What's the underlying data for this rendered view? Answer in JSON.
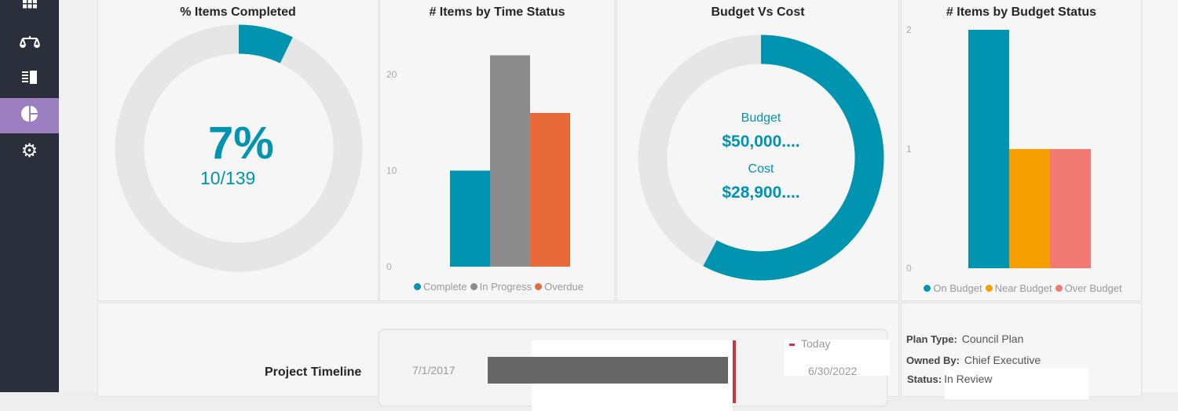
{
  "sidebar": {
    "items": [
      {
        "icon": "grid-icon"
      },
      {
        "icon": "scales-icon"
      },
      {
        "icon": "list-panel-icon"
      },
      {
        "icon": "pie-chart-icon",
        "active": true
      },
      {
        "icon": "gear-icon"
      }
    ]
  },
  "completed": {
    "title": "% Items Completed",
    "percent_label": "7%",
    "count_label": "10/139",
    "fraction": 0.072,
    "color": "#0094b0"
  },
  "time_status": {
    "title": "# Items by Time Status"
  },
  "budget_cost": {
    "title": "Budget Vs Cost",
    "budget_label": "Budget",
    "budget_value": "$50,000....",
    "cost_label": "Cost",
    "cost_value": "$28,900....",
    "fraction": 0.578
  },
  "budget_status": {
    "title": "# Items by Budget Status"
  },
  "timeline": {
    "title": "Project Timeline",
    "start": "7/1/2017",
    "end": "6/30/2022",
    "legend_today": "Today",
    "today_fraction": 0.96
  },
  "info": {
    "plan_type_label": "Plan Type:",
    "plan_type": "Council Plan",
    "owned_by_label": "Owned By:",
    "owned_by": "Chief Executive",
    "status_label": "Status:",
    "status": "In Review"
  },
  "chart_data": [
    {
      "type": "bar",
      "title": "# Items by Time Status",
      "categories": [
        "Complete",
        "In Progress",
        "Overdue"
      ],
      "values": [
        10,
        22,
        16
      ],
      "colors": [
        "#0094b0",
        "#8c8c8c",
        "#e8693a"
      ],
      "yticks": [
        "0",
        "10",
        "20"
      ],
      "ylim": [
        0,
        22
      ],
      "legend": "bottom"
    },
    {
      "type": "bar",
      "title": "# Items by Budget Status",
      "categories": [
        "On Budget",
        "Near Budget",
        "Over Budget"
      ],
      "values": [
        2,
        1,
        1
      ],
      "colors": [
        "#0094b0",
        "#f5a000",
        "#f07a72"
      ],
      "yticks": [
        "0",
        "1",
        "2"
      ],
      "ylim": [
        0,
        2
      ],
      "legend": "bottom"
    }
  ]
}
